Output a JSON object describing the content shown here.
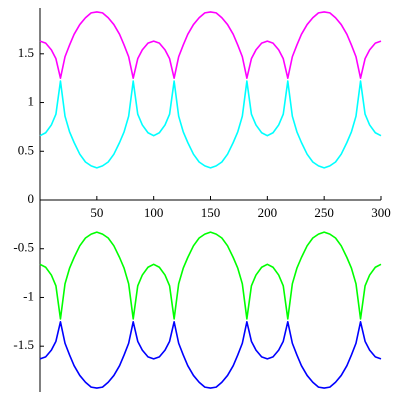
{
  "chart_data": {
    "type": "line",
    "x": [
      0,
      5,
      10,
      14,
      18,
      22,
      26,
      30,
      35,
      40,
      45,
      50,
      55,
      60,
      65,
      70,
      74,
      78,
      82,
      86,
      90,
      95,
      100,
      105,
      110,
      114,
      118,
      122,
      126,
      130,
      135,
      140,
      145,
      150,
      155,
      160,
      165,
      170,
      174,
      178,
      182,
      186,
      190,
      195,
      200,
      205,
      210,
      214,
      218,
      222,
      226,
      230,
      235,
      240,
      245,
      250,
      255,
      260,
      265,
      270,
      274,
      278,
      282,
      286,
      290,
      295,
      300
    ],
    "series": [
      {
        "color": "#ff00ff",
        "values": [
          1.63,
          1.61,
          1.54,
          1.45,
          1.25,
          1.47,
          1.59,
          1.7,
          1.8,
          1.87,
          1.92,
          1.93,
          1.92,
          1.87,
          1.8,
          1.7,
          1.59,
          1.47,
          1.25,
          1.45,
          1.54,
          1.61,
          1.63,
          1.61,
          1.54,
          1.45,
          1.25,
          1.47,
          1.59,
          1.7,
          1.8,
          1.87,
          1.92,
          1.93,
          1.92,
          1.87,
          1.8,
          1.7,
          1.59,
          1.47,
          1.25,
          1.45,
          1.54,
          1.61,
          1.63,
          1.61,
          1.54,
          1.45,
          1.25,
          1.47,
          1.59,
          1.7,
          1.8,
          1.87,
          1.92,
          1.93,
          1.92,
          1.87,
          1.8,
          1.7,
          1.59,
          1.47,
          1.25,
          1.45,
          1.54,
          1.61,
          1.63
        ]
      },
      {
        "color": "#00ffff",
        "values": [
          0.66,
          0.69,
          0.77,
          0.88,
          1.22,
          0.86,
          0.7,
          0.59,
          0.47,
          0.39,
          0.35,
          0.33,
          0.35,
          0.39,
          0.47,
          0.59,
          0.7,
          0.86,
          1.22,
          0.88,
          0.77,
          0.69,
          0.66,
          0.69,
          0.77,
          0.88,
          1.22,
          0.86,
          0.7,
          0.59,
          0.47,
          0.39,
          0.35,
          0.33,
          0.35,
          0.39,
          0.47,
          0.59,
          0.7,
          0.86,
          1.22,
          0.88,
          0.77,
          0.69,
          0.66,
          0.69,
          0.77,
          0.88,
          1.22,
          0.86,
          0.7,
          0.59,
          0.47,
          0.39,
          0.35,
          0.33,
          0.35,
          0.39,
          0.47,
          0.59,
          0.7,
          0.86,
          1.22,
          0.88,
          0.77,
          0.69,
          0.66
        ]
      },
      {
        "color": "#00ff00",
        "values": [
          -0.66,
          -0.69,
          -0.77,
          -0.88,
          -1.22,
          -0.86,
          -0.7,
          -0.59,
          -0.47,
          -0.39,
          -0.35,
          -0.33,
          -0.35,
          -0.39,
          -0.47,
          -0.59,
          -0.7,
          -0.86,
          -1.22,
          -0.88,
          -0.77,
          -0.69,
          -0.66,
          -0.69,
          -0.77,
          -0.88,
          -1.22,
          -0.86,
          -0.7,
          -0.59,
          -0.47,
          -0.39,
          -0.35,
          -0.33,
          -0.35,
          -0.39,
          -0.47,
          -0.59,
          -0.7,
          -0.86,
          -1.22,
          -0.88,
          -0.77,
          -0.69,
          -0.66,
          -0.69,
          -0.77,
          -0.88,
          -1.22,
          -0.86,
          -0.7,
          -0.59,
          -0.47,
          -0.39,
          -0.35,
          -0.33,
          -0.35,
          -0.39,
          -0.47,
          -0.59,
          -0.7,
          -0.86,
          -1.22,
          -0.88,
          -0.77,
          -0.69,
          -0.66
        ]
      },
      {
        "color": "#0000ff",
        "values": [
          -1.63,
          -1.61,
          -1.54,
          -1.45,
          -1.25,
          -1.47,
          -1.59,
          -1.7,
          -1.8,
          -1.87,
          -1.92,
          -1.93,
          -1.92,
          -1.87,
          -1.8,
          -1.7,
          -1.59,
          -1.47,
          -1.25,
          -1.45,
          -1.54,
          -1.61,
          -1.63,
          -1.61,
          -1.54,
          -1.45,
          -1.25,
          -1.47,
          -1.59,
          -1.7,
          -1.8,
          -1.87,
          -1.92,
          -1.93,
          -1.92,
          -1.87,
          -1.8,
          -1.7,
          -1.59,
          -1.47,
          -1.25,
          -1.45,
          -1.54,
          -1.61,
          -1.63,
          -1.61,
          -1.54,
          -1.45,
          -1.25,
          -1.47,
          -1.59,
          -1.7,
          -1.8,
          -1.87,
          -1.92,
          -1.93,
          -1.92,
          -1.87,
          -1.8,
          -1.7,
          -1.59,
          -1.47,
          -1.25,
          -1.45,
          -1.54,
          -1.61,
          -1.63
        ]
      }
    ],
    "xlim": [
      0,
      300
    ],
    "xticks": [
      50,
      100,
      150,
      200,
      250,
      300
    ],
    "ylim": [
      -1.97,
      1.97
    ],
    "yticks": [
      -1.5,
      -1,
      -0.5,
      0,
      0.5,
      1,
      1.5
    ]
  }
}
